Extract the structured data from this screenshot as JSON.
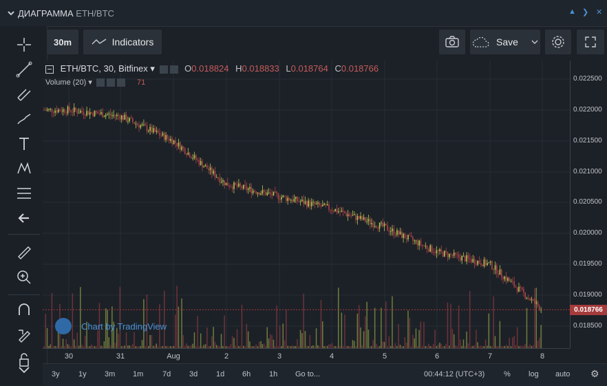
{
  "header": {
    "title": "ДИАГРАММА",
    "pair": "ETH/BTC"
  },
  "top_toolbar": {
    "interval": "30m",
    "indicators": "Indicators",
    "save": "Save"
  },
  "legend": {
    "symbol": "ETH/BTC, 30, Bitfinex",
    "o_label": "O",
    "o": "0.018824",
    "h_label": "H",
    "h": "0.018833",
    "l_label": "L",
    "l": "0.018764",
    "c_label": "C",
    "c": "0.018766",
    "volume_label": "Volume (20)",
    "volume_value": "71"
  },
  "price_axis": [
    "0.022500",
    "0.022000",
    "0.021500",
    "0.021000",
    "0.020500",
    "0.020000",
    "0.019500",
    "0.019000",
    "0.018500"
  ],
  "last_price": "0.018766",
  "time_axis": [
    "30",
    "31",
    "Aug",
    "2",
    "3",
    "4",
    "5",
    "6",
    "7",
    "8"
  ],
  "bottom_bar": {
    "ranges": [
      "3y",
      "1y",
      "3m",
      "1m",
      "7d",
      "3d",
      "1d",
      "6h",
      "1h"
    ],
    "goto": "Go to...",
    "clock": "00:44:12 (UTC+3)",
    "percent": "%",
    "log": "log",
    "auto": "auto"
  },
  "watermark": "Chart by TradingView",
  "colors": {
    "up": "#b6c850",
    "down": "#b0434a",
    "accent": "#4a91d6",
    "background": "#1c2127"
  },
  "chart_data": {
    "type": "candlestick",
    "ylim": [
      0.0182,
      0.0226
    ],
    "x": [
      "30",
      "31",
      "Aug",
      "2",
      "3",
      "4",
      "5",
      "6",
      "7",
      "8"
    ],
    "close_trend": [
      0.022,
      0.0219,
      0.0215,
      0.0208,
      0.0206,
      0.0204,
      0.0201,
      0.0197,
      0.0195,
      0.018766
    ]
  }
}
